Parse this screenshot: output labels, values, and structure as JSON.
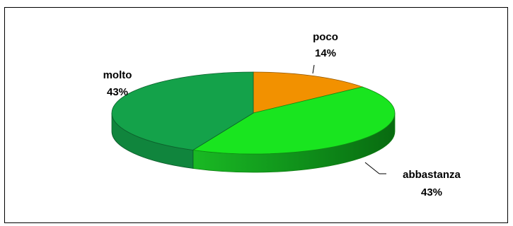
{
  "chart_data": {
    "type": "pie",
    "style": "3d",
    "slices": [
      {
        "label": "poco",
        "value": 14,
        "value_label": "14%",
        "color": "#F29100"
      },
      {
        "label": "abbastanza",
        "value": 43,
        "value_label": "43%",
        "color": "#19E51F"
      },
      {
        "label": "molto",
        "value": 43,
        "value_label": "43%",
        "color": "#14A24A"
      }
    ]
  }
}
